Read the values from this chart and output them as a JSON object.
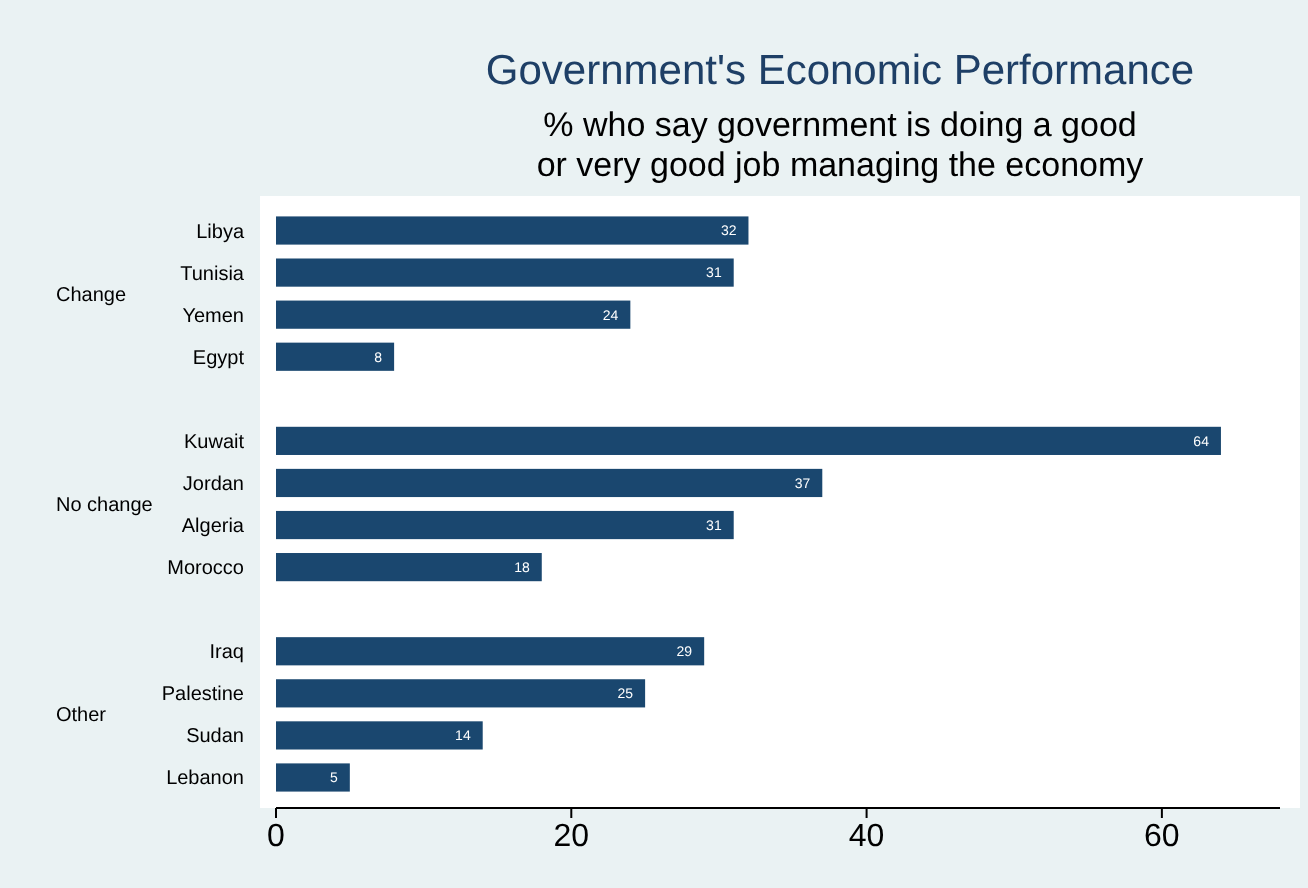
{
  "chart_data": {
    "type": "bar",
    "orientation": "horizontal",
    "title": "Government's Economic Performance",
    "subtitle": "% who say government is doing a good\nor very good job managing the economy",
    "categories": [
      "Libya",
      "Tunisia",
      "Yemen",
      "Egypt",
      null,
      "Kuwait",
      "Jordan",
      "Algeria",
      "Morocco",
      null,
      "Iraq",
      "Palestine",
      "Sudan",
      "Lebanon"
    ],
    "values": [
      32,
      31,
      24,
      8,
      null,
      64,
      37,
      31,
      18,
      null,
      29,
      25,
      14,
      5
    ],
    "color": "#1a476f",
    "data_labels": true,
    "annotations": [
      "Change",
      "No change",
      "Other"
    ],
    "xlim": [
      0,
      68
    ],
    "xticks": [
      0,
      20,
      40,
      60
    ]
  }
}
